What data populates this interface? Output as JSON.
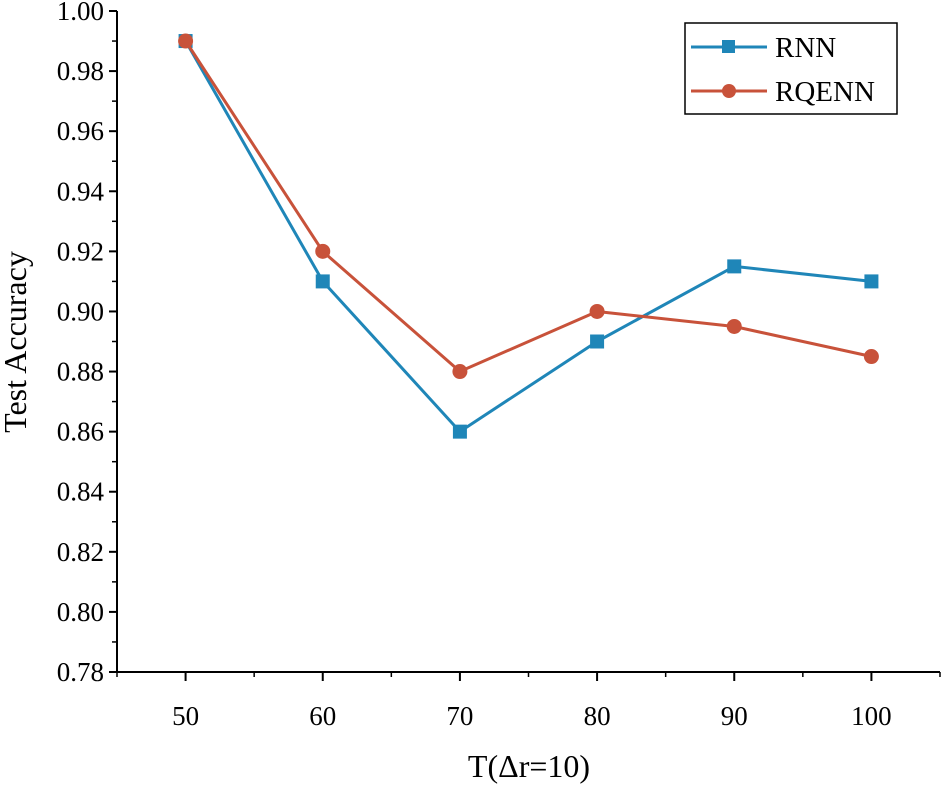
{
  "chart_data": {
    "type": "line",
    "title": "",
    "xlabel": "T(Δr=10)",
    "ylabel": "Test Accuracy",
    "x": [
      50,
      60,
      70,
      80,
      90,
      100
    ],
    "x_tick_labels": [
      "50",
      "60",
      "70",
      "80",
      "90",
      "100"
    ],
    "xlim": [
      45,
      105
    ],
    "ylim": [
      0.78,
      1.0
    ],
    "y_ticks": [
      0.78,
      0.8,
      0.82,
      0.84,
      0.86,
      0.88,
      0.9,
      0.92,
      0.94,
      0.96,
      0.98,
      1.0
    ],
    "y_tick_labels": [
      "0.78",
      "0.80",
      "0.82",
      "0.84",
      "0.86",
      "0.88",
      "0.90",
      "0.92",
      "0.94",
      "0.96",
      "0.98",
      "1.00"
    ],
    "grid": false,
    "legend_position": "top-right",
    "series": [
      {
        "name": "RNN",
        "marker": "square",
        "color": "#1f86b8",
        "values": [
          0.99,
          0.91,
          0.86,
          0.89,
          0.915,
          0.91
        ]
      },
      {
        "name": "RQENN",
        "marker": "circle",
        "color": "#c8523a",
        "values": [
          0.99,
          0.92,
          0.88,
          0.9,
          0.895,
          0.885
        ]
      }
    ]
  }
}
